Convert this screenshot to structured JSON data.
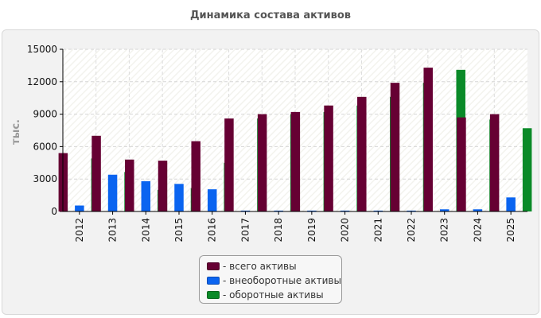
{
  "colors": {
    "total": "#660033",
    "noncurrent": "#0a64f0",
    "current": "#0a8a28"
  },
  "chart_data": {
    "type": "bar",
    "title": "Динамика состава активов",
    "ylabel": "тыс.",
    "xlabel": "",
    "ylim": [
      0,
      15000
    ],
    "yticks": [
      0,
      3000,
      6000,
      9000,
      12000,
      15000
    ],
    "grid": true,
    "categories": [
      "2012",
      "2013",
      "2014",
      "2015",
      "2016",
      "2017",
      "2018",
      "2019",
      "2020",
      "2021",
      "2022",
      "2023",
      "2024",
      "2025"
    ],
    "series": [
      {
        "name": "- всего активы",
        "values": [
          5400,
          7000,
          4800,
          4700,
          6500,
          8600,
          9000,
          9200,
          9800,
          10600,
          11900,
          13300,
          8700,
          9000
        ]
      },
      {
        "name": "- внеоборотные активы",
        "values": [
          550,
          3400,
          2800,
          2550,
          2050,
          80,
          80,
          80,
          80,
          80,
          80,
          200,
          200,
          1300
        ]
      },
      {
        "name": "- оборотные активы",
        "values": [
          4900,
          3650,
          2000,
          2150,
          4500,
          8600,
          9000,
          9200,
          9800,
          10600,
          11900,
          13100,
          8500,
          7700
        ]
      }
    ],
    "legend_position": "bottom"
  }
}
